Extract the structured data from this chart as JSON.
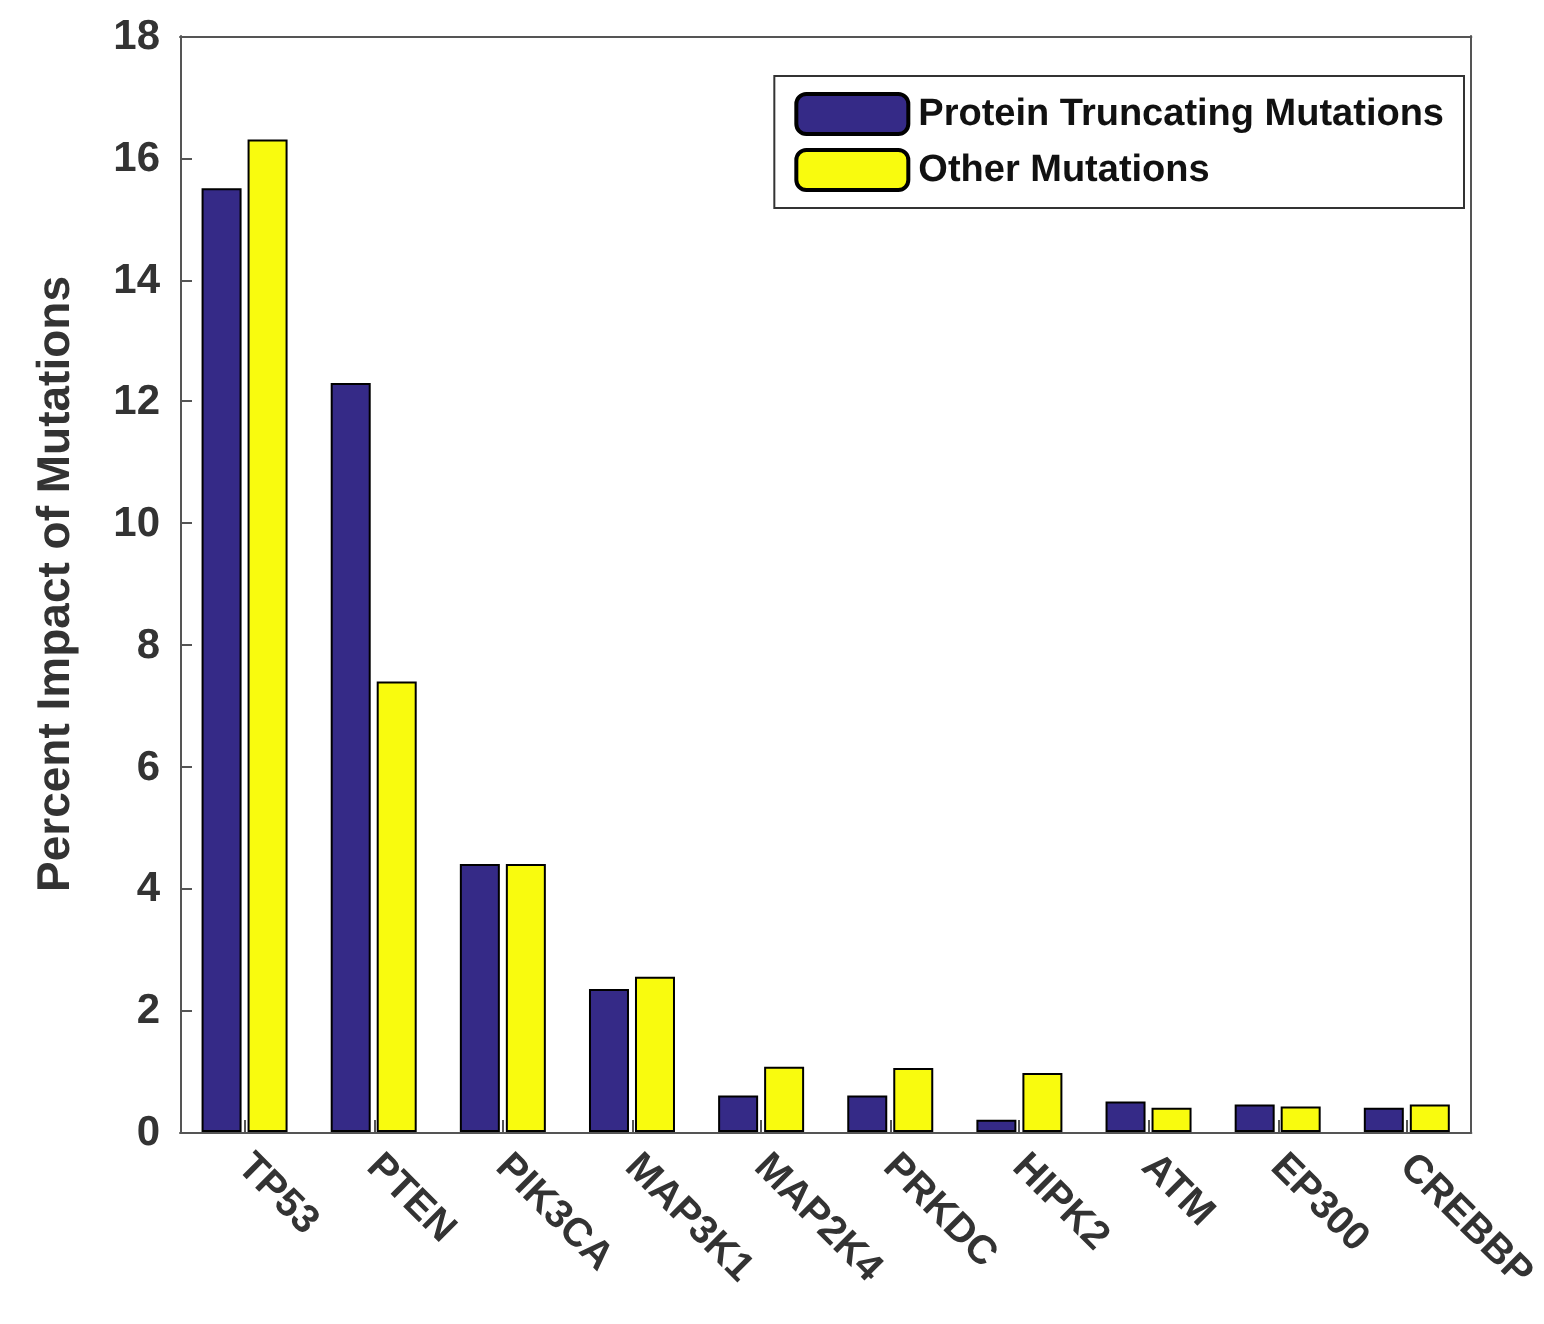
{
  "chart_data": {
    "type": "bar",
    "ylabel": "Percent Impact of Mutations",
    "categories": [
      "TP53",
      "PTEN",
      "PIK3CA",
      "MAP3K1",
      "MAP2K4",
      "PRKDC",
      "HIPK2",
      "ATM",
      "EP300",
      "CREBBP"
    ],
    "series": [
      {
        "name": "Protein Truncating Mutations",
        "color": "#352a87",
        "values": [
          15.5,
          12.3,
          4.4,
          2.35,
          0.6,
          0.6,
          0.2,
          0.5,
          0.45,
          0.4
        ]
      },
      {
        "name": "Other Mutations",
        "color": "#f9fb0e",
        "values": [
          16.3,
          7.4,
          4.4,
          2.55,
          1.07,
          1.05,
          0.97,
          0.4,
          0.42,
          0.45
        ]
      }
    ],
    "ylim": [
      0,
      18
    ],
    "yticks": [
      0,
      2,
      4,
      6,
      8,
      10,
      12,
      14,
      16,
      18
    ],
    "grid": false,
    "legend": "top right"
  }
}
